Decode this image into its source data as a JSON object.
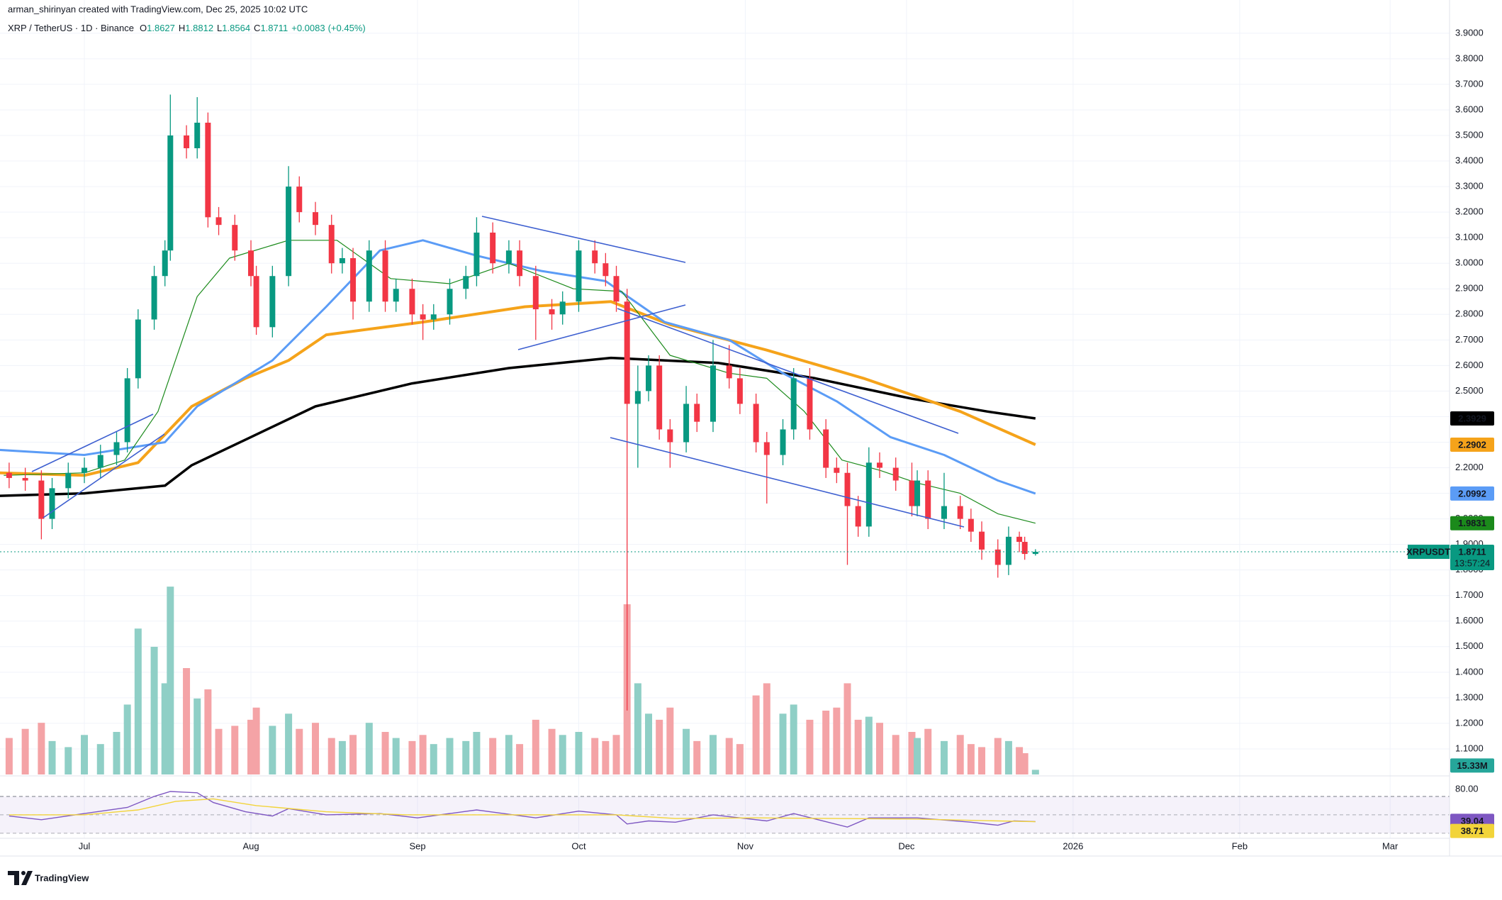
{
  "header": {
    "attribution": "arman_shirinyan created with TradingView.com, Dec 25, 2025 10:02 UTC",
    "symbol": "XRP / TetherUS · 1D · Binance",
    "ohlc": [
      {
        "label": "O",
        "value": 1.8627
      },
      {
        "label": "H",
        "value": 1.8812
      },
      {
        "label": "L",
        "value": 1.8564
      },
      {
        "label": "C",
        "value": 1.8711
      }
    ],
    "change": {
      "value": 0.0083,
      "label": "+0.0083"
    },
    "change_pct": {
      "value": 0.45,
      "label": "(+0.45%)"
    }
  },
  "chart_data": {
    "type": "candlestick",
    "up_color": "#089981",
    "down_color": "#f23645",
    "grid": true,
    "x": [
      -14,
      -11,
      -8,
      -6,
      -3,
      0,
      3,
      6,
      8,
      10,
      13,
      15,
      16,
      19,
      21,
      23,
      25,
      28,
      31,
      32,
      35,
      38,
      40,
      43,
      46,
      48,
      50,
      53,
      56,
      58,
      61,
      63,
      65,
      68,
      71,
      73,
      76,
      79,
      81,
      84,
      87,
      89,
      92,
      95,
      97,
      99,
      101,
      103,
      105,
      107,
      109,
      112,
      114,
      117,
      120,
      122,
      125,
      127,
      130,
      132,
      135,
      138,
      140,
      142,
      144,
      146,
      148,
      151,
      154,
      155,
      157,
      160,
      163,
      165,
      167,
      170,
      172,
      174,
      175,
      177
    ],
    "open": [
      2.18,
      2.16,
      2.15,
      2.0,
      2.12,
      2.18,
      2.2,
      2.25,
      2.3,
      2.55,
      2.78,
      2.95,
      3.05,
      3.5,
      3.45,
      3.55,
      3.18,
      3.15,
      3.05,
      2.95,
      2.75,
      2.95,
      3.3,
      3.2,
      3.15,
      3.0,
      3.02,
      2.85,
      3.05,
      2.85,
      2.9,
      2.8,
      2.78,
      2.8,
      2.9,
      2.95,
      3.12,
      3.0,
      3.05,
      2.95,
      2.82,
      2.8,
      2.85,
      3.05,
      3.0,
      2.95,
      2.85,
      2.45,
      2.5,
      2.6,
      2.35,
      2.3,
      2.45,
      2.38,
      2.6,
      2.55,
      2.45,
      2.3,
      2.25,
      2.35,
      2.55,
      2.35,
      2.2,
      2.18,
      2.05,
      1.97,
      2.22,
      2.2,
      2.15,
      2.05,
      2.15,
      2.0,
      2.05,
      2.0,
      1.95,
      1.88,
      1.82,
      1.93,
      1.91,
      1.8627
    ],
    "high": [
      2.22,
      2.2,
      2.19,
      2.16,
      2.22,
      2.24,
      2.29,
      2.34,
      2.59,
      2.82,
      2.99,
      3.09,
      3.66,
      3.54,
      3.65,
      3.59,
      3.22,
      3.19,
      3.09,
      2.99,
      2.99,
      3.38,
      3.34,
      3.24,
      3.19,
      3.06,
      3.06,
      3.09,
      3.09,
      2.94,
      2.94,
      2.84,
      2.84,
      2.94,
      2.99,
      3.18,
      3.16,
      3.09,
      3.09,
      2.99,
      2.86,
      2.89,
      3.09,
      3.09,
      3.04,
      2.99,
      2.9,
      2.6,
      2.64,
      2.64,
      2.39,
      2.52,
      2.49,
      2.7,
      2.68,
      2.59,
      2.49,
      2.34,
      2.39,
      2.59,
      2.59,
      2.39,
      2.24,
      2.22,
      2.09,
      2.28,
      2.26,
      2.24,
      2.22,
      2.19,
      2.19,
      2.18,
      2.09,
      2.04,
      1.99,
      1.92,
      1.97,
      1.95,
      1.93,
      1.8812
    ],
    "low": [
      2.12,
      2.11,
      1.92,
      1.96,
      2.08,
      2.14,
      2.16,
      2.21,
      2.26,
      2.51,
      2.74,
      2.91,
      3.01,
      3.41,
      3.41,
      3.14,
      3.11,
      3.01,
      2.91,
      2.72,
      2.71,
      2.91,
      3.16,
      3.11,
      2.96,
      2.96,
      2.78,
      2.81,
      2.81,
      2.81,
      2.76,
      2.7,
      2.74,
      2.76,
      2.86,
      2.91,
      2.96,
      2.96,
      2.91,
      2.7,
      2.74,
      2.76,
      2.81,
      2.96,
      2.91,
      2.81,
      1.25,
      2.2,
      2.46,
      2.31,
      2.2,
      2.26,
      2.34,
      2.34,
      2.51,
      2.41,
      2.26,
      2.06,
      2.21,
      2.31,
      2.31,
      2.16,
      2.14,
      1.82,
      1.93,
      1.93,
      2.16,
      2.11,
      2.01,
      2.01,
      1.96,
      1.96,
      1.96,
      1.91,
      1.84,
      1.77,
      1.78,
      1.87,
      1.84,
      1.8564
    ],
    "close": [
      2.16,
      2.15,
      2.0,
      2.12,
      2.18,
      2.2,
      2.25,
      2.3,
      2.55,
      2.78,
      2.95,
      3.05,
      3.5,
      3.45,
      3.55,
      3.18,
      3.15,
      3.05,
      2.95,
      2.75,
      2.95,
      3.3,
      3.2,
      3.15,
      3.0,
      3.02,
      2.85,
      3.05,
      2.85,
      2.9,
      2.8,
      2.78,
      2.8,
      2.9,
      2.95,
      3.12,
      3.0,
      3.05,
      2.95,
      2.82,
      2.8,
      2.85,
      3.05,
      3.0,
      2.95,
      2.85,
      2.45,
      2.5,
      2.6,
      2.35,
      2.3,
      2.45,
      2.38,
      2.6,
      2.55,
      2.45,
      2.3,
      2.25,
      2.35,
      2.55,
      2.35,
      2.2,
      2.18,
      2.05,
      1.97,
      2.22,
      2.2,
      2.15,
      2.05,
      2.15,
      2.0,
      2.05,
      2.0,
      1.95,
      1.88,
      1.82,
      1.93,
      1.91,
      1.8627,
      1.8711
    ],
    "xlim": [
      -15.7,
      253.4
    ],
    "xticks": [
      {
        "value": 0,
        "label": "Jul"
      },
      {
        "value": 31,
        "label": "Aug"
      },
      {
        "value": 62,
        "label": "Sep"
      },
      {
        "value": 92,
        "label": "Oct"
      },
      {
        "value": 123,
        "label": "Nov"
      },
      {
        "value": 153,
        "label": "Dec"
      },
      {
        "value": 184,
        "label": "2026"
      },
      {
        "value": 215,
        "label": "Feb"
      },
      {
        "value": 243,
        "label": "Mar"
      }
    ],
    "ylim": [
      1.0,
      4.03
    ],
    "yticks": [
      {
        "value": 1.1,
        "label": "1.1000"
      },
      {
        "value": 1.2,
        "label": "1.2000"
      },
      {
        "value": 1.3,
        "label": "1.3000"
      },
      {
        "value": 1.4,
        "label": "1.4000"
      },
      {
        "value": 1.5,
        "label": "1.5000"
      },
      {
        "value": 1.6,
        "label": "1.6000"
      },
      {
        "value": 1.7,
        "label": "1.7000"
      },
      {
        "value": 1.8,
        "label": "1.8000"
      },
      {
        "value": 1.9,
        "label": "1.9000"
      },
      {
        "value": 2.0,
        "label": "2.0000"
      },
      {
        "value": 2.1,
        "label": "2.1000"
      },
      {
        "value": 2.2,
        "label": "2.2000"
      },
      {
        "value": 2.3,
        "label": "2.3000"
      },
      {
        "value": 2.4,
        "label": "2.4000"
      },
      {
        "value": 2.5,
        "label": "2.5000"
      },
      {
        "value": 2.6,
        "label": "2.6000"
      },
      {
        "value": 2.7,
        "label": "2.7000"
      },
      {
        "value": 2.8,
        "label": "2.8000"
      },
      {
        "value": 2.9,
        "label": "2.9000"
      },
      {
        "value": 3.0,
        "label": "3.0000"
      },
      {
        "value": 3.1,
        "label": "3.1000"
      },
      {
        "value": 3.2,
        "label": "3.2000"
      },
      {
        "value": 3.3,
        "label": "3.3000"
      },
      {
        "value": 3.4,
        "label": "3.4000"
      },
      {
        "value": 3.5,
        "label": "3.5000"
      },
      {
        "value": 3.6,
        "label": "3.6000"
      },
      {
        "value": 3.7,
        "label": "3.7000"
      },
      {
        "value": 3.8,
        "label": "3.8000"
      },
      {
        "value": 3.9,
        "label": "3.9000"
      }
    ],
    "last_price": {
      "name": "XRPUSDT",
      "countdown": "13:57:24",
      "color": "#089981"
    },
    "moving_averages": [
      {
        "color": "#000000",
        "width": 3.5,
        "x": [
          -16,
          0,
          15,
          20,
          31,
          43,
          61,
          79,
          98,
          118,
          136,
          154,
          168,
          177
        ],
        "values": [
          2.09,
          2.1,
          2.13,
          2.21,
          2.32,
          2.44,
          2.53,
          2.59,
          2.63,
          2.61,
          2.55,
          2.47,
          2.42,
          2.3929
        ]
      },
      {
        "color": "#f5a31a",
        "width": 4,
        "x": [
          -16,
          0,
          10,
          20,
          30,
          38,
          45,
          63,
          82,
          98,
          109,
          127,
          145,
          163,
          177
        ],
        "values": [
          2.18,
          2.17,
          2.22,
          2.44,
          2.55,
          2.62,
          2.72,
          2.77,
          2.83,
          2.85,
          2.76,
          2.66,
          2.55,
          2.42,
          2.2902
        ]
      },
      {
        "color": "#5b9cf6",
        "width": 3,
        "x": [
          -16,
          0,
          15,
          21,
          35,
          45,
          55,
          63,
          73,
          85,
          97,
          108,
          120,
          130,
          140,
          150,
          160,
          170,
          177
        ],
        "values": [
          2.27,
          2.25,
          2.3,
          2.44,
          2.62,
          2.83,
          3.05,
          3.09,
          3.03,
          2.97,
          2.93,
          2.77,
          2.7,
          2.57,
          2.46,
          2.32,
          2.25,
          2.15,
          2.0992
        ]
      },
      {
        "color": "#1b8a1b",
        "width": 1.2,
        "x": [
          -15,
          0,
          7.5,
          13.7,
          21,
          27,
          38,
          47,
          57,
          68,
          79,
          91,
          100,
          109,
          120,
          127,
          134,
          141,
          148,
          155,
          163,
          170,
          177
        ],
        "values": [
          2.17,
          2.18,
          2.23,
          2.42,
          2.87,
          3.02,
          3.09,
          3.09,
          2.94,
          2.92,
          3.0,
          2.9,
          2.89,
          2.64,
          2.57,
          2.55,
          2.42,
          2.23,
          2.19,
          2.14,
          2.1,
          2.02,
          1.9831
        ]
      }
    ],
    "volume": {
      "up_color": "#8fcfc6",
      "down_color": "#f4a3a6",
      "vlim": [
        0,
        700
      ],
      "values": [
        120,
        150,
        170,
        110,
        90,
        130,
        100,
        140,
        230,
        480,
        420,
        300,
        618,
        350,
        250,
        280,
        150,
        160,
        180,
        220,
        160,
        200,
        150,
        170,
        120,
        110,
        130,
        170,
        140,
        120,
        110,
        130,
        100,
        120,
        110,
        140,
        120,
        130,
        100,
        180,
        150,
        130,
        140,
        120,
        110,
        130,
        560,
        300,
        200,
        180,
        220,
        150,
        110,
        130,
        120,
        100,
        260,
        300,
        200,
        230,
        180,
        210,
        220,
        300,
        180,
        190,
        170,
        130,
        140,
        120,
        150,
        110,
        130,
        100,
        90,
        120,
        110,
        90,
        70,
        15.33
      ],
      "value_labels": [
        null,
        null,
        null,
        null,
        null,
        null,
        null,
        null,
        null,
        null,
        null,
        null,
        null,
        null,
        null,
        null,
        null,
        null,
        null,
        null,
        null,
        null,
        null,
        null,
        null,
        null,
        null,
        null,
        null,
        null,
        null,
        null,
        null,
        null,
        null,
        null,
        null,
        null,
        null,
        null,
        null,
        null,
        null,
        null,
        null,
        null,
        null,
        null,
        null,
        null,
        null,
        null,
        null,
        null,
        null,
        null,
        null,
        null,
        null,
        null,
        null,
        null,
        null,
        null,
        null,
        null,
        null,
        null,
        null,
        null,
        null,
        null,
        null,
        null,
        null,
        null,
        null,
        null,
        null,
        "15.33M"
      ],
      "label_color": "#26a69a"
    },
    "rsi": {
      "ylim": [
        14,
        110
      ],
      "yticks": [
        {
          "value": 80,
          "label": "80.00"
        }
      ],
      "levels": [
        50,
        20
      ],
      "series": [
        {
          "color": "#7e57c2",
          "x": [
            -14,
            -8,
            0,
            8,
            13,
            16,
            21,
            24,
            30,
            35,
            38,
            45,
            55,
            62,
            73,
            84,
            92,
            99,
            101,
            105,
            110,
            117,
            127,
            132,
            142,
            146,
            155,
            165,
            170,
            173,
            177
          ],
          "values": [
            48,
            42,
            52,
            62,
            80,
            88,
            86,
            70,
            55,
            48,
            60,
            50,
            52,
            45,
            58,
            45,
            56,
            50,
            35,
            40,
            38,
            50,
            40,
            52,
            30,
            45,
            45,
            38,
            33,
            40,
            39.04
          ]
        },
        {
          "color": "#f2d43a",
          "x": [
            -14,
            0,
            10,
            17,
            24,
            32,
            45,
            60,
            80,
            99,
            110,
            125,
            140,
            155,
            170,
            177
          ],
          "values": [
            50,
            50,
            58,
            72,
            76,
            65,
            55,
            50,
            50,
            50,
            44,
            45,
            44,
            43,
            40,
            38.71
          ]
        }
      ]
    }
  },
  "footer": {
    "brand": "TradingView"
  }
}
